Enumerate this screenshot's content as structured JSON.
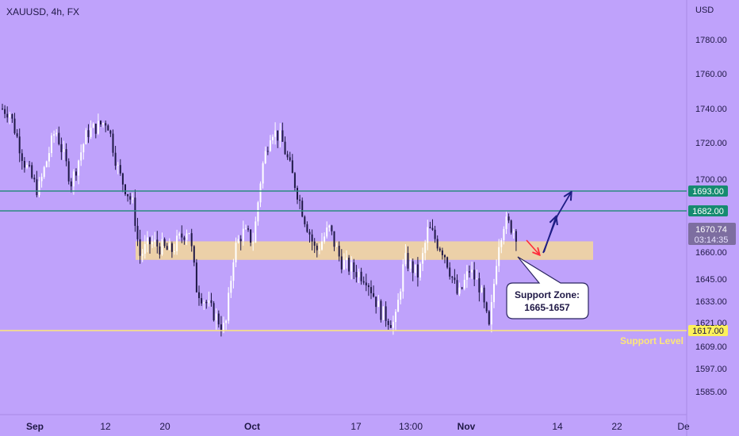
{
  "header": {
    "symbol": "XAUUSD, 4h, FX",
    "currency": "USD"
  },
  "colors": {
    "background": "#bfa2fb",
    "axis_text": "#1f1846",
    "candle_up": "#ffffff",
    "candle_down": "#1f1846",
    "resistance_line": "#2b8a7f",
    "resistance_tag": "#168b70",
    "support_line": "#fde67a",
    "support_tag": "#fdf15a",
    "support_zone": "#f3d899",
    "current_price_tag": "#7d6ea0",
    "arrow_up": "#1f1e85",
    "arrow_down": "#ff2b3a"
  },
  "chart_data": {
    "type": "candlestick",
    "title": "XAUUSD, 4h, FX",
    "ylabel": "USD",
    "ylim": [
      1575,
      1795
    ],
    "y_ticks": [
      "1780.00",
      "1760.00",
      "1740.00",
      "1720.00",
      "1700.00",
      "1660.00",
      "1645.00",
      "1633.00",
      "1621.00",
      "1609.00",
      "1597.00",
      "1585.00"
    ],
    "x_ticks": [
      "Sep",
      "12",
      "20",
      "Oct",
      "17",
      "13:00",
      "Nov",
      "14",
      "22",
      "De"
    ],
    "series": [
      {
        "type": "candlestick",
        "approx_close_path": [
          {
            "x": "Sep",
            "close": 1740
          },
          {
            "x": "12",
            "close": 1733
          },
          {
            "x": "14",
            "close": 1700
          },
          {
            "x": "15",
            "close": 1676
          },
          {
            "x": "20",
            "close": 1665
          },
          {
            "x": "27",
            "close": 1633
          },
          {
            "x": "28",
            "close": 1617
          },
          {
            "x": "29",
            "close": 1660
          },
          {
            "x": "Oct",
            "close": 1675
          },
          {
            "x": "Oct 4",
            "close": 1728
          },
          {
            "x": "Oct 10",
            "close": 1677
          },
          {
            "x": "17",
            "close": 1653
          },
          {
            "x": "13:00",
            "close": 1620
          },
          {
            "x": "Oct 28",
            "close": 1648
          },
          {
            "x": "Nov",
            "close": 1641
          },
          {
            "x": "Nov 3",
            "close": 1617
          },
          {
            "x": "Nov 4",
            "close": 1676
          },
          {
            "x": "Nov 7",
            "close": 1671
          }
        ]
      }
    ],
    "horizontal_lines": [
      {
        "label": "1693.00",
        "price": 1693.0,
        "kind": "resistance"
      },
      {
        "label": "1682.00",
        "price": 1682.0,
        "kind": "resistance"
      },
      {
        "label": "1617.00",
        "price": 1617.0,
        "kind": "support",
        "text": "Support Level"
      }
    ],
    "zones": [
      {
        "name": "Support Zone",
        "from": 1657,
        "to": 1665
      }
    ],
    "current_price": {
      "price": "1670.74",
      "countdown": "03:14:35"
    },
    "annotation": {
      "line1": "Support Zone:",
      "line2": "1665-1657"
    },
    "grid": false,
    "legend": "none"
  }
}
